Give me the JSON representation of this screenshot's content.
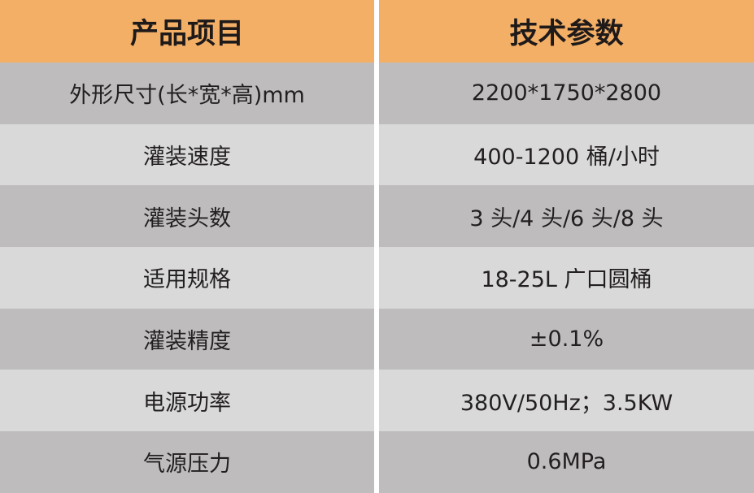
{
  "header": {
    "col1": "产品项目",
    "col2": "技术参数"
  },
  "rows": [
    {
      "item": "外形尺寸(长*宽*高)mm",
      "value": "2200*1750*2800"
    },
    {
      "item": "灌装速度",
      "value": "400-1200 桶/小时"
    },
    {
      "item": "灌装头数",
      "value": "3 头/4 头/6 头/8 头"
    },
    {
      "item": "适用规格",
      "value": "18-25L 广口圆桶"
    },
    {
      "item": "灌装精度",
      "value": "±0.1%"
    },
    {
      "item": "电源功率",
      "value": "380V/50Hz；3.5KW"
    },
    {
      "item": "气源压力",
      "value": "0.6MPa"
    }
  ],
  "colors": {
    "header": "#f4af66",
    "row_dark": "#bebcbd",
    "row_light": "#d9d9d9"
  }
}
